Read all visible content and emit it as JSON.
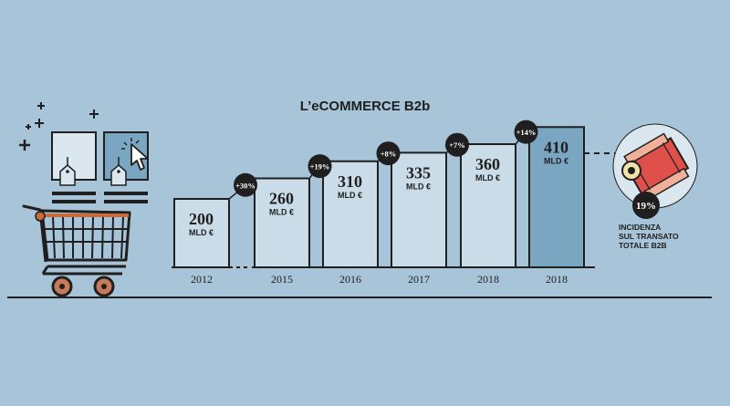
{
  "title": "L’eCOMMERCE B2b",
  "colors": {
    "background": "#a7c4d8",
    "bar_fill": "#c9dce8",
    "bar_highlight": "#7ba6c2",
    "outline": "#1f1f1f",
    "badge": "#1f1f1f",
    "accent_red": "#e0504a",
    "accent_orange": "#d2703a"
  },
  "chart_data": {
    "type": "bar",
    "categories": [
      "2012",
      "2015",
      "2016",
      "2017",
      "2018",
      "2018"
    ],
    "values": [
      200,
      260,
      310,
      335,
      360,
      410
    ],
    "unit": "MLD €",
    "growth_labels": [
      "",
      "+30%",
      "+19%",
      "+8%",
      "+7%",
      "+14%"
    ],
    "highlight_index": 5,
    "axis_break_after": 0
  },
  "side_note": {
    "percent": "19%",
    "lines": [
      "INCIDENZA",
      "SUL TRANSATO",
      "TOTALE B2b"
    ]
  },
  "icons": [
    "plus-icon",
    "product-card-icon",
    "price-tag-icon",
    "cursor-icon",
    "shopping-cart-icon",
    "pie-icon"
  ]
}
